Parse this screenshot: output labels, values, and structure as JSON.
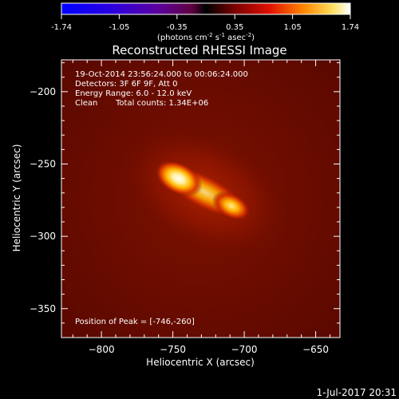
{
  "colorbar": {
    "ticks": [
      "-1.74",
      "-1.05",
      "-0.35",
      "0.35",
      "1.05",
      "1.74"
    ],
    "unit_main": "(photons cm",
    "unit_sup1": "-2",
    "unit_mid1": " s",
    "unit_sup2": "-1",
    "unit_mid2": " asec",
    "unit_sup3": "-2",
    "unit_end": ")"
  },
  "info": {
    "time": "19-Oct-2014 23:56:24.000 to 00:06:24.000",
    "detectors": "Detectors: 3F 6F 9F, Att 0",
    "energy": "Energy Range: 6.0 - 12.0 keV",
    "method": "Clean",
    "counts": "Total counts: 1.34E+06",
    "peak": "Position of Peak = [-746,-260]"
  },
  "footer_date": "1-Jul-2017 20:31",
  "chart_data": {
    "type": "heatmap",
    "title": "Reconstructed RHESSI Image",
    "xlabel": "Heliocentric X (arcsec)",
    "ylabel": "Heliocentric Y (arcsec)",
    "xlim": [
      -828,
      -633
    ],
    "ylim": [
      -370,
      -178
    ],
    "x_ticks": [
      -800,
      -750,
      -700,
      -650
    ],
    "x_tick_labels": [
      "−800",
      "−750",
      "−700",
      "−650"
    ],
    "y_ticks": [
      -200,
      -250,
      -300,
      -350
    ],
    "y_tick_labels": [
      "−200",
      "−250",
      "−300",
      "−350"
    ],
    "colorbar_range": [
      -1.74,
      1.74
    ],
    "sources": [
      {
        "x": -746,
        "y": -260,
        "peak": 1.74
      },
      {
        "x": -709,
        "y": -279,
        "peak": 1.2
      }
    ]
  }
}
